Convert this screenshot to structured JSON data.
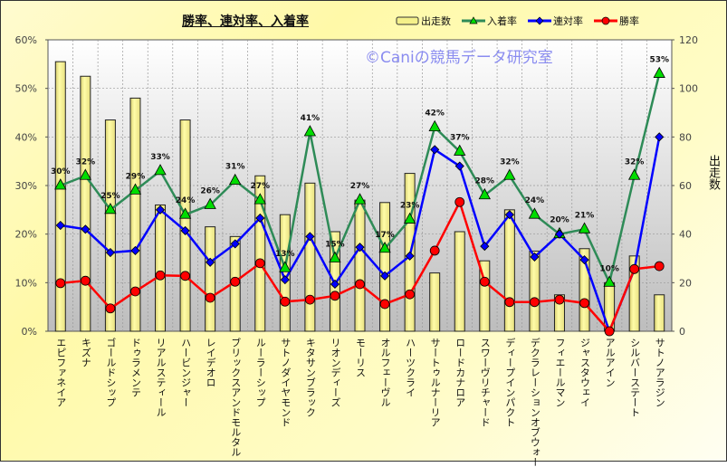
{
  "chart_data": {
    "type": "bar",
    "title": "勝率、連対率、入着率",
    "watermark": "©Caniの競馬データ研究室",
    "categories": [
      "エピファネイア",
      "キズナ",
      "ゴールドシップ",
      "ドゥラメンテ",
      "リアルスティール",
      "ハービンジャー",
      "レイデオロ",
      "ブリックスアンドモルタル",
      "ルーラーシップ",
      "サトノダイヤモンド",
      "キタサンブラック",
      "リオンディーズ",
      "モーリス",
      "オルフェーヴル",
      "ハーツクライ",
      "サートゥルナーリア",
      "ロードカナロア",
      "スワーヴリチャード",
      "ディープインパクト",
      "デクラレーションオブウォー",
      "フィエールマン",
      "ジャスタウェイ",
      "アルアイン",
      "シルバーステート",
      "サトノアラジン"
    ],
    "series": [
      {
        "name": "出走数",
        "type": "bar",
        "axis": "right",
        "color": "#f4f08a",
        "values": [
          111,
          105,
          87,
          96,
          52,
          87,
          43,
          39,
          64,
          48,
          61,
          41,
          54,
          53,
          65,
          24,
          41,
          29,
          50,
          33,
          15,
          34,
          20,
          31,
          15
        ]
      },
      {
        "name": "入着率",
        "type": "line",
        "axis": "left",
        "color": "#2e8b57",
        "marker": "triangle",
        "marker_color": "#00dd00",
        "values": [
          30,
          32,
          25,
          29,
          33,
          24,
          26,
          31,
          27,
          13,
          41,
          15,
          27,
          17,
          23,
          42,
          37,
          28,
          32,
          24,
          20,
          21,
          10,
          32,
          53
        ],
        "labels": [
          "30%",
          "32%",
          "25%",
          "29%",
          "33%",
          "24%",
          "26%",
          "31%",
          "27%",
          "13%",
          "41%",
          "15%",
          "27%",
          "17%",
          "23%",
          "42%",
          "37%",
          "28%",
          "32%",
          "24%",
          "20%",
          "21%",
          "10%",
          "32%",
          "53%"
        ]
      },
      {
        "name": "連対率",
        "type": "line",
        "axis": "left",
        "color": "#0000ff",
        "marker": "diamond",
        "values": [
          21.8,
          21,
          16.2,
          16.6,
          25,
          20.7,
          14.2,
          18,
          23.3,
          10.6,
          19.5,
          9.7,
          17.3,
          11.4,
          15.5,
          37.4,
          34,
          17.5,
          24,
          15.3,
          20,
          14.7,
          0,
          12.7,
          40
        ]
      },
      {
        "name": "勝率",
        "type": "line",
        "axis": "left",
        "color": "#ff0000",
        "marker": "circle",
        "values": [
          9.9,
          10.4,
          4.7,
          8.2,
          11.5,
          11.4,
          6.9,
          10.2,
          14,
          6.1,
          6.5,
          7.3,
          9.7,
          5.6,
          7.6,
          16.6,
          26.6,
          10.2,
          6,
          6,
          6.5,
          5.8,
          0,
          12.8,
          13.4
        ]
      }
    ],
    "y_left": {
      "ylim": [
        0,
        60
      ],
      "ticks": [
        "0%",
        "10%",
        "20%",
        "30%",
        "40%",
        "50%",
        "60%"
      ]
    },
    "y_right": {
      "label": "出走数",
      "ylim": [
        0,
        120
      ],
      "ticks": [
        "0",
        "20",
        "40",
        "60",
        "80",
        "100",
        "120"
      ]
    },
    "legend_placement": "top-right",
    "grid": true
  }
}
